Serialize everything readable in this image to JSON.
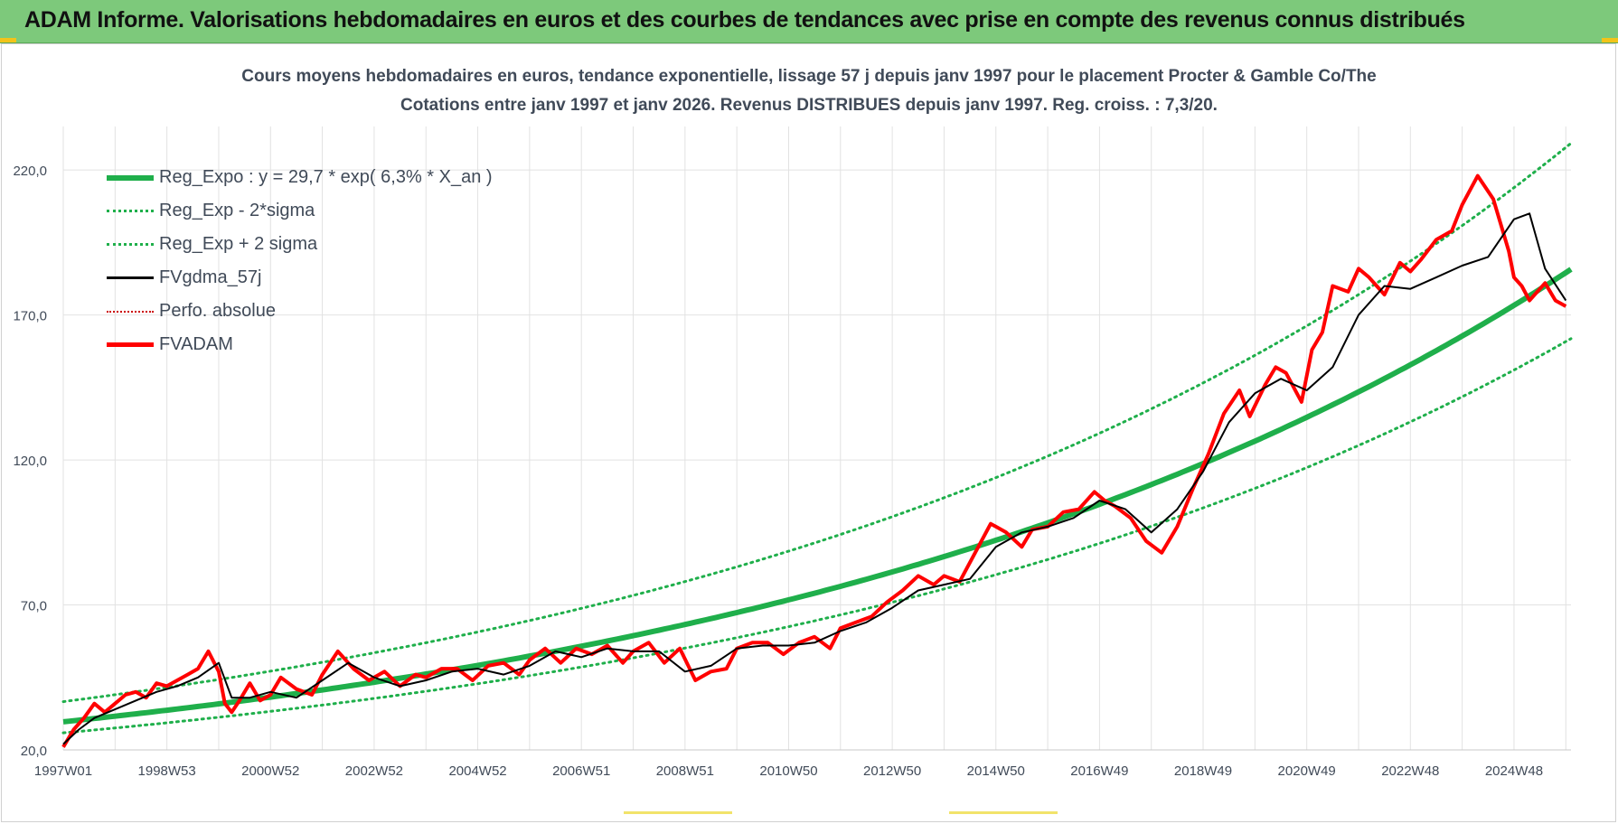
{
  "header": {
    "title": "ADAM Informe. Valorisations hebdomadaires en euros et des courbes de tendances avec prise en compte des revenus connus distribués"
  },
  "colors": {
    "banner": "#7dc97b",
    "reg": "#1faf4b",
    "fv": "#000000",
    "adam": "#ff0000",
    "perfo": "#cc0000",
    "text": "#404a58",
    "grid": "#e2e2e2"
  },
  "chart_data": {
    "type": "line",
    "title": "Cours moyens hebdomadaires en euros, tendance exponentielle, lissage 57 j depuis janv 1997 pour le placement Procter & Gamble Co/The",
    "subtitle": "Cotations entre janv 1997 et janv 2026. Revenus DISTRIBUES depuis janv 1997. Reg. croiss. : 7,3/20.",
    "xlabel": "",
    "ylabel": "",
    "xlim": [
      1997.0,
      2026.1
    ],
    "ylim": [
      20,
      235
    ],
    "yticks": [
      20,
      70,
      120,
      170,
      220
    ],
    "ytick_labels": [
      "20,0",
      "70,0",
      "120,0",
      "170,0",
      "220,0"
    ],
    "xticks": [
      1997.0,
      1999.0,
      2001.0,
      2003.0,
      2005.0,
      2007.0,
      2009.0,
      2011.0,
      2013.0,
      2015.0,
      2017.0,
      2019.0,
      2021.0,
      2023.0,
      2025.0
    ],
    "xtick_labels": [
      "1997W01",
      "1998W53",
      "2000W52",
      "2002W52",
      "2004W52",
      "2006W51",
      "2008W51",
      "2010W50",
      "2012W50",
      "2014W50",
      "2016W49",
      "2018W49",
      "2020W49",
      "2022W48",
      "2024W48"
    ],
    "grid": true,
    "legend_position": "top-left",
    "regression": {
      "a": 29.7,
      "rate": 0.063,
      "sigma_factor": 0.176
    },
    "series": [
      {
        "name": "Reg_Expo : y = 29,7 * exp( 6,3% *  X_an )",
        "style": "thick"
      },
      {
        "name": "Reg_Exp - 2*sigma",
        "style": "dotted"
      },
      {
        "name": "Reg_Exp + 2 sigma",
        "style": "dotted"
      },
      {
        "name": "FVgdma_57j",
        "style": "solid",
        "x": [
          1997.0,
          1997.3,
          1997.6,
          1998.0,
          1998.4,
          1998.8,
          1999.2,
          1999.6,
          2000.0,
          2000.25,
          2000.6,
          2001.0,
          2001.5,
          2002.0,
          2002.5,
          2003.0,
          2003.5,
          2004.0,
          2004.5,
          2005.0,
          2005.5,
          2006.0,
          2006.5,
          2007.0,
          2007.5,
          2008.0,
          2008.5,
          2009.0,
          2009.5,
          2010.0,
          2010.5,
          2011.0,
          2011.5,
          2012.0,
          2012.5,
          2013.0,
          2013.5,
          2014.0,
          2014.5,
          2015.0,
          2015.5,
          2016.0,
          2016.5,
          2017.0,
          2017.5,
          2018.0,
          2018.5,
          2019.0,
          2019.5,
          2020.0,
          2020.5,
          2021.0,
          2021.5,
          2022.0,
          2022.5,
          2023.0,
          2023.5,
          2024.0,
          2024.5,
          2025.0,
          2025.3,
          2025.6,
          2026.0
        ],
        "y": [
          22,
          27,
          31,
          34,
          37,
          40,
          42,
          45,
          50,
          38,
          38,
          40,
          38,
          44,
          50,
          45,
          42,
          44,
          47,
          48,
          46,
          49,
          54,
          52,
          55,
          54,
          54,
          47,
          49,
          55,
          56,
          56,
          57,
          61,
          64,
          69,
          75,
          77,
          79,
          90,
          95,
          97,
          100,
          106,
          103,
          95,
          103,
          116,
          133,
          143,
          148,
          144,
          152,
          170,
          180,
          179,
          183,
          187,
          190,
          203,
          205,
          186,
          175
        ]
      },
      {
        "name": "Perfo. absolue",
        "style": "dotted"
      },
      {
        "name": "FVADAM",
        "style": "solid",
        "x": [
          1997.0,
          1997.2,
          1997.4,
          1997.6,
          1997.8,
          1998.0,
          1998.2,
          1998.4,
          1998.6,
          1998.8,
          1999.0,
          1999.2,
          1999.4,
          1999.6,
          1999.8,
          2000.0,
          2000.12,
          2000.25,
          2000.4,
          2000.6,
          2000.8,
          2001.0,
          2001.2,
          2001.5,
          2001.8,
          2002.0,
          2002.3,
          2002.6,
          2002.9,
          2003.2,
          2003.5,
          2003.8,
          2004.0,
          2004.3,
          2004.6,
          2004.9,
          2005.2,
          2005.5,
          2005.8,
          2006.0,
          2006.3,
          2006.6,
          2006.9,
          2007.2,
          2007.5,
          2007.8,
          2008.0,
          2008.3,
          2008.6,
          2008.9,
          2009.2,
          2009.5,
          2009.8,
          2010.0,
          2010.3,
          2010.6,
          2010.9,
          2011.2,
          2011.5,
          2011.8,
          2012.0,
          2012.3,
          2012.6,
          2012.9,
          2013.2,
          2013.5,
          2013.8,
          2014.0,
          2014.3,
          2014.6,
          2014.9,
          2015.0,
          2015.2,
          2015.5,
          2015.7,
          2016.0,
          2016.3,
          2016.6,
          2016.9,
          2017.1,
          2017.3,
          2017.6,
          2017.9,
          2018.2,
          2018.5,
          2018.8,
          2019.1,
          2019.4,
          2019.7,
          2019.9,
          2020.2,
          2020.4,
          2020.6,
          2020.9,
          2021.1,
          2021.3,
          2021.5,
          2021.8,
          2022.0,
          2022.2,
          2022.5,
          2022.8,
          2023.0,
          2023.2,
          2023.5,
          2023.8,
          2024.0,
          2024.3,
          2024.6,
          2024.9,
          2025.0,
          2025.15,
          2025.3,
          2025.6,
          2025.8,
          2026.0
        ],
        "y": [
          21,
          27,
          31,
          36,
          33,
          36,
          39,
          40,
          38,
          43,
          42,
          44,
          46,
          48,
          54,
          47,
          36,
          33,
          37,
          43,
          37,
          39,
          45,
          41,
          39,
          46,
          54,
          48,
          44,
          47,
          42,
          46,
          45,
          48,
          48,
          44,
          49,
          50,
          46,
          51,
          55,
          50,
          55,
          53,
          56,
          50,
          54,
          57,
          50,
          55,
          44,
          47,
          48,
          55,
          57,
          57,
          53,
          57,
          59,
          55,
          62,
          64,
          66,
          71,
          75,
          80,
          77,
          80,
          78,
          88,
          98,
          97,
          95,
          90,
          96,
          97,
          102,
          103,
          109,
          106,
          104,
          100,
          92,
          88,
          97,
          110,
          122,
          136,
          144,
          135,
          146,
          152,
          150,
          140,
          158,
          164,
          180,
          178,
          186,
          183,
          177,
          188,
          185,
          189,
          196,
          199,
          208,
          218,
          210,
          192,
          183,
          180,
          175,
          181,
          175,
          173
        ]
      }
    ]
  }
}
